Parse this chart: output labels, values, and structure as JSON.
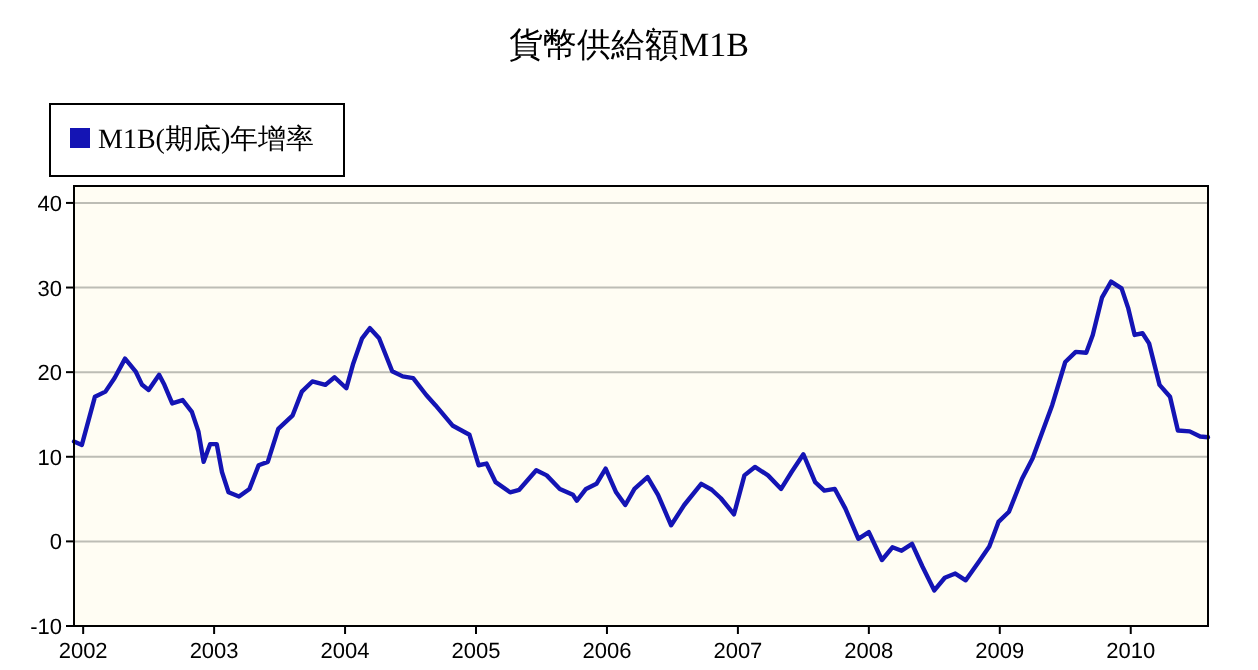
{
  "chart_data": {
    "type": "line",
    "title": "貨幣供給額M1B",
    "xlim": [
      2001.93,
      2010.59
    ],
    "xticks": [
      2002,
      2003,
      2004,
      2005,
      2006,
      2007,
      2008,
      2009,
      2010
    ],
    "ylim": [
      -10,
      42
    ],
    "yticks": [
      -10,
      0,
      10,
      20,
      30,
      40
    ],
    "grid": "y",
    "legend": "top left",
    "line_style": "solid",
    "marker": "none",
    "series": [
      {
        "name": "M1B(期底)年增率",
        "color": "#1414b4",
        "x": [
          2001.93,
          2001.99,
          2002.09,
          2002.17,
          2002.24,
          2002.32,
          2002.4,
          2002.45,
          2002.5,
          2002.58,
          2002.62,
          2002.68,
          2002.76,
          2002.83,
          2002.88,
          2002.92,
          2002.97,
          2003.02,
          2003.06,
          2003.11,
          2003.19,
          2003.27,
          2003.34,
          2003.41,
          2003.49,
          2003.6,
          2003.67,
          2003.75,
          2003.85,
          2003.92,
          2004.01,
          2004.06,
          2004.13,
          2004.19,
          2004.26,
          2004.36,
          2004.44,
          2004.52,
          2004.62,
          2004.69,
          2004.82,
          2004.95,
          2005.02,
          2005.08,
          2005.15,
          2005.26,
          2005.33,
          2005.46,
          2005.54,
          2005.64,
          2005.74,
          2005.77,
          2005.84,
          2005.92,
          2005.99,
          2006.07,
          2006.14,
          2006.21,
          2006.31,
          2006.39,
          2006.49,
          2006.59,
          2006.72,
          2006.8,
          2006.87,
          2006.97,
          2007.05,
          2007.13,
          2007.23,
          2007.33,
          2007.41,
          2007.5,
          2007.59,
          2007.66,
          2007.74,
          2007.82,
          2007.92,
          2008.0,
          2008.1,
          2008.18,
          2008.25,
          2008.33,
          2008.41,
          2008.5,
          2008.58,
          2008.66,
          2008.74,
          2008.84,
          2008.92,
          2008.99,
          2009.07,
          2009.17,
          2009.25,
          2009.4,
          2009.5,
          2009.58,
          2009.66,
          2009.71,
          2009.78,
          2009.85,
          2009.93,
          2009.98,
          2010.03,
          2010.09,
          2010.14,
          2010.22,
          2010.3,
          2010.36,
          2010.45,
          2010.53,
          2010.59
        ],
        "values": [
          11.8,
          11.4,
          17.1,
          17.7,
          19.3,
          21.6,
          20.1,
          18.5,
          17.9,
          19.7,
          18.5,
          16.3,
          16.7,
          15.3,
          13.0,
          9.4,
          11.5,
          11.5,
          8.2,
          5.8,
          5.3,
          6.2,
          9.0,
          9.4,
          13.3,
          14.9,
          17.7,
          18.9,
          18.5,
          19.4,
          18.1,
          20.9,
          24.0,
          25.2,
          24.0,
          20.1,
          19.5,
          19.3,
          17.3,
          16.1,
          13.7,
          12.6,
          9.0,
          9.2,
          7.0,
          5.8,
          6.1,
          8.4,
          7.8,
          6.2,
          5.5,
          4.8,
          6.2,
          6.8,
          8.6,
          5.8,
          4.3,
          6.2,
          7.6,
          5.5,
          1.9,
          4.3,
          6.8,
          6.1,
          5.1,
          3.2,
          7.8,
          8.8,
          7.8,
          6.2,
          8.2,
          10.3,
          7.0,
          6.0,
          6.2,
          3.9,
          0.3,
          1.1,
          -2.2,
          -0.7,
          -1.1,
          -0.3,
          -3.0,
          -5.8,
          -4.3,
          -3.8,
          -4.6,
          -2.4,
          -0.6,
          2.3,
          3.5,
          7.4,
          9.8,
          16.1,
          21.2,
          22.4,
          22.3,
          24.4,
          28.8,
          30.7,
          29.9,
          27.6,
          24.4,
          24.6,
          23.4,
          18.5,
          17.1,
          13.1,
          13.0,
          12.4,
          12.3
        ]
      }
    ]
  }
}
